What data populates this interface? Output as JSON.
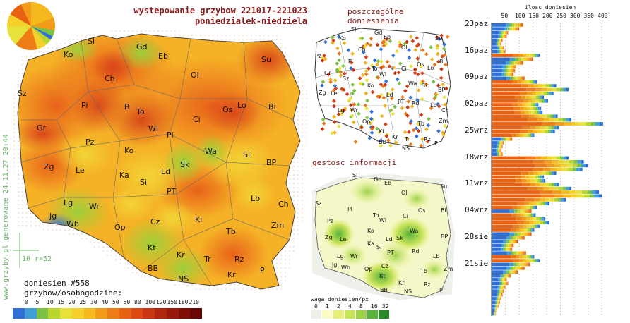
{
  "header": {
    "title_line1": "wystepowanie grzybow 221017-221023",
    "title_line2": "poniedzialek-niedziela",
    "reports_title": "poszczególne doniesienia",
    "density_title": "gestosc informacji",
    "histogram_title": "ilosc doniesien"
  },
  "watermark": "www.grzyby.pl generowane 24.11.27 20:44",
  "scale_label": "10 r=52",
  "report_count": "doniesien #558",
  "legend": {
    "title": "grzybow/osobogodzine:",
    "values": [
      "0",
      "5",
      "10",
      "15",
      "20",
      "25",
      "30",
      "40",
      "50",
      "60",
      "80",
      "100",
      "120",
      "150",
      "180",
      "210"
    ],
    "colors": [
      "#2f6fd6",
      "#3fa0d8",
      "#7cc242",
      "#b8d630",
      "#e6e23a",
      "#f5d02a",
      "#f5b81f",
      "#f29a1a",
      "#ee7d17",
      "#e86214",
      "#dc4a12",
      "#c8350f",
      "#b0260c",
      "#98180a",
      "#800f07",
      "#680806"
    ]
  },
  "density_legend": {
    "title": "waga doniesien/px",
    "values": [
      "0",
      "1",
      "2",
      "4",
      "8",
      "16",
      "32"
    ],
    "colors": [
      "#eef0ea",
      "#fbfbc4",
      "#e7f07a",
      "#c7e45a",
      "#9bd24a",
      "#5ab33a",
      "#2a8a2a"
    ]
  },
  "main_map": {
    "cities": [
      "Sl",
      "Gd",
      "Ko",
      "Eb",
      "Su",
      "Ol",
      "Ch",
      "Sz",
      "Pi",
      "B",
      "To",
      "Os",
      "Lo",
      "Bi",
      "Ci",
      "Wl",
      "Pl",
      "Gr",
      "Pz",
      "Ko",
      "Wa",
      "Si",
      "BP",
      "Zg",
      "Le",
      "Ka",
      "Ld",
      "Sk",
      "Lg",
      "Wr",
      "Si",
      "PT",
      "Lb",
      "Jg",
      "Wb",
      "Op",
      "Cz",
      "Ki",
      "Ch",
      "Zm",
      "Tb",
      "Kt",
      "Kr",
      "Tr",
      "Rz",
      "BB",
      "NS",
      "Kr",
      "P"
    ]
  },
  "reports_map": {
    "cities": [
      "Sl",
      "Gd",
      "Ko",
      "Eb",
      "Su",
      "Ch",
      "Ol",
      "Pz",
      "Pi",
      "Os",
      "Bi",
      "Gr",
      "To",
      "Ci",
      "Wl",
      "Lo",
      "Sz",
      "Le",
      "Ko",
      "Wa",
      "Si",
      "BP",
      "Zg",
      "Ld",
      "PT",
      "Lb",
      "Ch",
      "Lg",
      "Wr",
      "Rd",
      "Op",
      "Kt",
      "Tb",
      "Zm",
      "Kr",
      "BB",
      "Tr",
      "Rz",
      "NS",
      "P"
    ]
  },
  "density_map": {
    "cities": [
      "Sl",
      "Gd",
      "Eb",
      "Su",
      "Ol",
      "Sz",
      "Pi",
      "Wl",
      "Os",
      "Bi",
      "Pz",
      "Ko",
      "To",
      "Ci",
      "Zg",
      "Le",
      "Ka",
      "Ld",
      "Sk",
      "Wa",
      "Si",
      "BP",
      "Lg",
      "Wr",
      "PT",
      "Rd",
      "Lb",
      "Jg",
      "Wb",
      "Op",
      "Cz",
      "Tb",
      "Zm",
      "Kt",
      "Kr",
      "Rz",
      "BB",
      "NS",
      "P"
    ]
  },
  "chart_data": {
    "type": "bar",
    "title": "ilosc doniesien",
    "x_ticks": [
      "50",
      "100",
      "150",
      "200",
      "250",
      "300",
      "350",
      "400"
    ],
    "xlim": [
      0,
      420
    ],
    "y_date_labels": [
      "23paz",
      "16paz",
      "09paz",
      "02paz",
      "25wrz",
      "18wrz",
      "11wrz",
      "04wrz",
      "28sie",
      "21sie"
    ],
    "daily_totals": [
      115,
      100,
      60,
      55,
      40,
      35,
      45,
      50,
      175,
      150,
      115,
      90,
      85,
      80,
      120,
      165,
      235,
      280,
      225,
      190,
      205,
      170,
      180,
      185,
      240,
      290,
      405,
      245,
      230,
      155,
      75,
      45,
      40,
      35,
      40,
      280,
      335,
      350,
      330,
      235,
      190,
      195,
      245,
      290,
      390,
      400,
      270,
      210,
      165,
      145,
      160,
      195,
      210,
      175,
      155,
      145,
      120,
      95,
      80,
      75,
      125,
      155,
      175,
      140,
      120,
      95,
      70,
      55,
      60,
      50,
      45,
      40,
      35,
      30,
      25,
      20,
      15
    ]
  }
}
